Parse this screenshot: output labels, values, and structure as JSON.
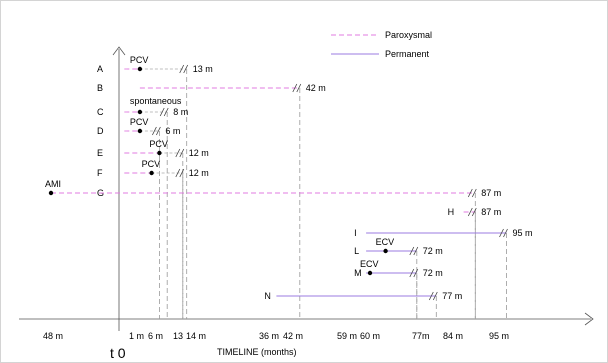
{
  "chart_data": {
    "type": "timeline",
    "title": "",
    "xlabel": "TIMELINE (months)",
    "origin_label": "t 0",
    "x_ticks": [
      {
        "label": "48 m",
        "value": -48
      },
      {
        "label": "1 m",
        "value": 1
      },
      {
        "label": "6 m",
        "value": 6
      },
      {
        "label": "13",
        "value": 13
      },
      {
        "label": "14 m",
        "value": 14
      },
      {
        "label": "36 m",
        "value": 36
      },
      {
        "label": "42 m",
        "value": 42
      },
      {
        "label": "59 m",
        "value": 59
      },
      {
        "label": "60 m",
        "value": 60
      },
      {
        "label": "77m",
        "value": 77
      },
      {
        "label": "84 m",
        "value": 84
      },
      {
        "label": "95 m",
        "value": 95
      }
    ],
    "legend": [
      {
        "name": "Paroxysmal",
        "style": "dashed",
        "color": "#e07be0"
      },
      {
        "name": "Permanent",
        "style": "solid",
        "color": "#9b7be0"
      }
    ],
    "legend_position": "top-right",
    "rows": [
      {
        "id": "A",
        "event": "PCV",
        "event_at": 1,
        "paroxysmal": [
          -3,
          1
        ],
        "permanent": null,
        "followup_end": 13,
        "followup_label": "13 m",
        "break": true
      },
      {
        "id": "B",
        "event": "",
        "event_at": null,
        "paroxysmal": [
          1,
          42
        ],
        "permanent": null,
        "followup_end": 42,
        "followup_label": "42 m",
        "break": true
      },
      {
        "id": "C",
        "event": "spontaneous",
        "event_at": 1,
        "paroxysmal": [
          -3,
          1
        ],
        "permanent": null,
        "followup_end": 8,
        "followup_label": "8 m",
        "break": true
      },
      {
        "id": "D",
        "event": "PCV",
        "event_at": 1,
        "paroxysmal": [
          -3,
          1
        ],
        "permanent": null,
        "followup_end": 6,
        "followup_label": "6 m",
        "break": true
      },
      {
        "id": "E",
        "event": "PCV",
        "event_at": 6,
        "paroxysmal": [
          -3,
          6
        ],
        "permanent": null,
        "followup_end": 12,
        "followup_label": "12 m",
        "break": true
      },
      {
        "id": "F",
        "event": "PCV",
        "event_at": 4,
        "paroxysmal": [
          -3,
          4
        ],
        "permanent": null,
        "followup_end": 12,
        "followup_label": "12 m",
        "break": true
      },
      {
        "id": "G",
        "event": "AMI",
        "event_at": -48,
        "paroxysmal": [
          -48,
          87
        ],
        "permanent": null,
        "followup_end": 87,
        "followup_label": "87 m",
        "break": true
      },
      {
        "id": "H",
        "event": "",
        "event_at": null,
        "paroxysmal": [
          84,
          87
        ],
        "permanent": null,
        "followup_end": 87,
        "followup_label": "87 m",
        "break": true
      },
      {
        "id": "I",
        "event": "",
        "event_at": null,
        "paroxysmal": null,
        "permanent": [
          59,
          95
        ],
        "followup_end": 95,
        "followup_label": "95 m",
        "break": true
      },
      {
        "id": "L",
        "event": "ECV",
        "event_at": 64,
        "paroxysmal": null,
        "permanent": [
          59,
          72
        ],
        "followup_end": 72,
        "followup_label": "72 m",
        "break": true
      },
      {
        "id": "M",
        "event": "ECV",
        "event_at": 60,
        "paroxysmal": null,
        "permanent": [
          59,
          72
        ],
        "followup_end": 72,
        "followup_label": "72 m",
        "break": true
      },
      {
        "id": "N",
        "event": "",
        "event_at": null,
        "paroxysmal": null,
        "permanent": [
          36,
          77
        ],
        "followup_end": 77,
        "followup_label": "77 m",
        "break": true
      }
    ]
  }
}
